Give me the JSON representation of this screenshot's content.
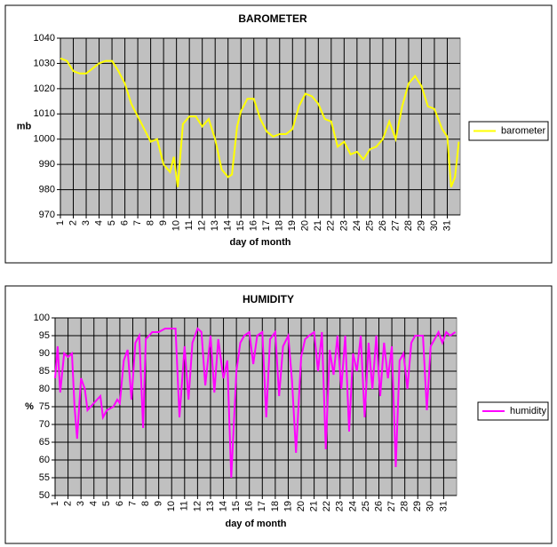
{
  "chart_data": [
    {
      "type": "line",
      "title": "BAROMETER",
      "xlabel": "day of month",
      "ylabel": "mb",
      "x": [
        1,
        1.5,
        2,
        2.5,
        3,
        3.5,
        4,
        4.5,
        5,
        5.5,
        6,
        6.5,
        7,
        7.5,
        8,
        8.5,
        9,
        9.5,
        9.8,
        10.1,
        10.5,
        11,
        11.5,
        12,
        12.5,
        13,
        13.5,
        14,
        14.3,
        14.7,
        15,
        15.5,
        16,
        16.5,
        17,
        17.5,
        18,
        18.5,
        19,
        19.5,
        20,
        20.5,
        21,
        21.5,
        22,
        22.5,
        23,
        23.5,
        24,
        24.5,
        25,
        25.5,
        26,
        26.5,
        27,
        27.5,
        28,
        28.5,
        29,
        29.5,
        30,
        30.6,
        31,
        31.3,
        31.6,
        31.9
      ],
      "series": [
        {
          "name": "barometer",
          "color": "#ffff00",
          "values": [
            1032,
            1031,
            1027,
            1026,
            1026,
            1028,
            1030,
            1031,
            1031,
            1027,
            1022,
            1014,
            1009,
            1004,
            999,
            1000,
            990,
            987,
            993,
            981,
            1006,
            1009,
            1009,
            1005,
            1008,
            1000,
            988,
            985,
            986,
            1005,
            1011,
            1016,
            1016,
            1008,
            1003,
            1001,
            1002,
            1002,
            1004,
            1013,
            1018,
            1017,
            1014,
            1008,
            1007,
            997,
            999,
            994,
            995,
            992,
            996,
            997,
            1000,
            1007,
            1000,
            1013,
            1022,
            1025,
            1021,
            1013,
            1012,
            1004,
            1001,
            981,
            985,
            999
          ]
        }
      ],
      "xlim": [
        1,
        32
      ],
      "ylim": [
        970,
        1040
      ],
      "xticks": [
        1,
        2,
        3,
        4,
        5,
        6,
        7,
        8,
        9,
        10,
        11,
        12,
        13,
        14,
        15,
        16,
        17,
        18,
        19,
        20,
        21,
        22,
        23,
        24,
        25,
        26,
        27,
        28,
        29,
        30,
        31
      ],
      "yticks": [
        970,
        980,
        990,
        1000,
        1010,
        1020,
        1030,
        1040
      ],
      "grid": true,
      "legend": "right"
    },
    {
      "type": "line",
      "title": "HUMIDITY",
      "xlabel": "day of month",
      "ylabel": "%",
      "x": [
        1,
        1.2,
        1.4,
        1.7,
        2,
        2.3,
        2.5,
        2.7,
        3,
        3.3,
        3.5,
        4,
        4.5,
        4.7,
        5,
        5.5,
        5.8,
        6,
        6.3,
        6.6,
        6.9,
        7.2,
        7.5,
        7.8,
        8,
        8.5,
        9,
        9.5,
        10,
        10.3,
        10.6,
        11,
        11.3,
        11.6,
        12,
        12.3,
        12.6,
        13,
        13.3,
        13.6,
        14,
        14.3,
        14.6,
        15,
        15.3,
        15.6,
        16,
        16.3,
        16.6,
        17,
        17.3,
        17.6,
        18,
        18.3,
        18.6,
        19,
        19.3,
        19.6,
        20,
        20.3,
        20.6,
        21,
        21.3,
        21.6,
        21.9,
        22.2,
        22.5,
        22.8,
        23.1,
        23.4,
        23.7,
        24,
        24.3,
        24.6,
        24.9,
        25.2,
        25.5,
        25.8,
        26.1,
        26.4,
        26.7,
        27,
        27.3,
        27.6,
        27.9,
        28.2,
        28.5,
        28.8,
        29.1,
        29.4,
        29.7,
        30,
        30.3,
        30.6,
        30.9,
        31.2,
        31.5,
        31.9
      ],
      "series": [
        {
          "name": "humidity",
          "color": "#ff00ff",
          "values": [
            83,
            92,
            79,
            90,
            89,
            90,
            75,
            66,
            83,
            80,
            74,
            76,
            78,
            72,
            74,
            75,
            77,
            76,
            88,
            91,
            77,
            93,
            95,
            69,
            94,
            96,
            96,
            97,
            97,
            97,
            72,
            92,
            77,
            93,
            97,
            96,
            81,
            95,
            79,
            94,
            83,
            88,
            55,
            85,
            93,
            95,
            96,
            87,
            95,
            96,
            72,
            94,
            96,
            78,
            92,
            95,
            82,
            62,
            89,
            94,
            95,
            96,
            85,
            96,
            63,
            91,
            84,
            95,
            80,
            95,
            68,
            90,
            85,
            95,
            72,
            93,
            80,
            95,
            78,
            93,
            83,
            92,
            58,
            88,
            90,
            80,
            93,
            95,
            95,
            95,
            74,
            92,
            94,
            96,
            93,
            96,
            95,
            96
          ]
        }
      ],
      "xlim": [
        1,
        32
      ],
      "ylim": [
        50,
        100
      ],
      "xticks": [
        1,
        2,
        3,
        4,
        5,
        6,
        7,
        8,
        9,
        10,
        11,
        12,
        13,
        14,
        15,
        16,
        17,
        18,
        19,
        20,
        21,
        22,
        23,
        24,
        25,
        26,
        27,
        28,
        29,
        30,
        31
      ],
      "yticks": [
        50,
        55,
        60,
        65,
        70,
        75,
        80,
        85,
        90,
        95,
        100
      ],
      "grid": true,
      "legend": "right"
    }
  ]
}
